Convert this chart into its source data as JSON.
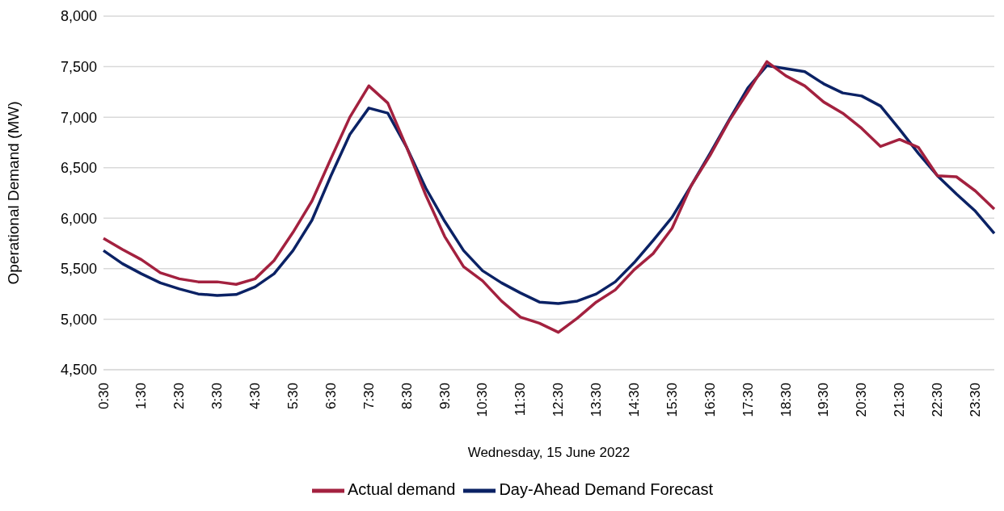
{
  "chart_data": {
    "type": "line",
    "xlabel": "Wednesday, 15 June 2022",
    "ylabel": "Operational Demand (MW)",
    "categories": [
      "0:30",
      null,
      "1:30",
      null,
      "2:30",
      null,
      "3:30",
      null,
      "4:30",
      null,
      "5:30",
      null,
      "6:30",
      null,
      "7:30",
      null,
      "8:30",
      null,
      "9:30",
      null,
      "10:30",
      null,
      "11:30",
      null,
      "12:30",
      null,
      "13:30",
      null,
      "14:30",
      null,
      "15:30",
      null,
      "16:30",
      null,
      "17:30",
      null,
      "18:30",
      null,
      "19:30",
      null,
      "20:30",
      null,
      "21:30",
      null,
      "22:30",
      null,
      "23:30",
      null
    ],
    "series": [
      {
        "name": "Day-Ahead Demand Forecast",
        "color": "#0b2265",
        "values": [
          5680,
          5550,
          5450,
          5360,
          5300,
          5250,
          5235,
          5245,
          5320,
          5450,
          5680,
          5980,
          6420,
          6830,
          7090,
          7040,
          6700,
          6300,
          5970,
          5680,
          5480,
          5360,
          5260,
          5170,
          5155,
          5180,
          5250,
          5370,
          5560,
          5780,
          6010,
          6320,
          6640,
          6970,
          7290,
          7510,
          7480,
          7450,
          7330,
          7240,
          7210,
          7110,
          6880,
          6640,
          6420,
          6240,
          6070,
          5850
        ]
      },
      {
        "name": "Actual demand",
        "color": "#a3213f",
        "values": [
          5800,
          5690,
          5590,
          5460,
          5400,
          5370,
          5370,
          5345,
          5400,
          5580,
          5860,
          6170,
          6590,
          7000,
          7310,
          7140,
          6700,
          6230,
          5820,
          5520,
          5380,
          5180,
          5020,
          4960,
          4870,
          5010,
          5170,
          5290,
          5490,
          5650,
          5900,
          6320,
          6620,
          6960,
          7250,
          7550,
          7410,
          7310,
          7150,
          7040,
          6890,
          6710,
          6780,
          6700,
          6420,
          6410,
          6270,
          6090
        ]
      }
    ],
    "ylim": [
      4500,
      8000
    ],
    "yticks": [
      {
        "value": 4500,
        "label": "4,500"
      },
      {
        "value": 5000,
        "label": "5,000"
      },
      {
        "value": 5500,
        "label": "5,500"
      },
      {
        "value": 6000,
        "label": "6,000"
      },
      {
        "value": 6500,
        "label": "6,500"
      },
      {
        "value": 7000,
        "label": "7,000"
      },
      {
        "value": 7500,
        "label": "7,500"
      },
      {
        "value": 8000,
        "label": "8,000"
      }
    ],
    "grid": "y",
    "legend": "bottom",
    "marker": "none",
    "line_style": "solid"
  }
}
